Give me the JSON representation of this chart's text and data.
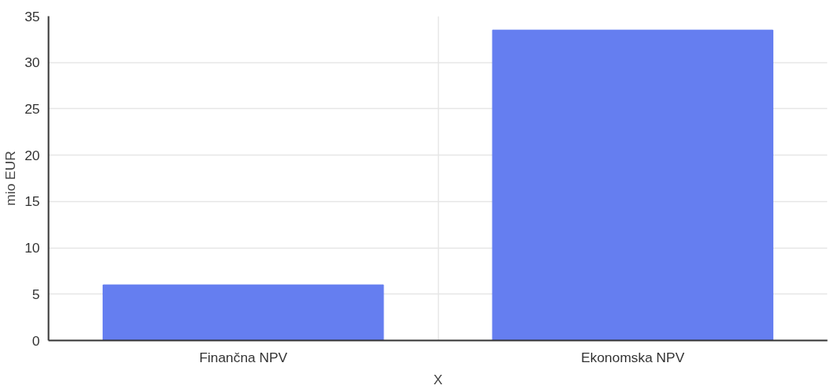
{
  "chart_data": {
    "type": "bar",
    "categories": [
      "Finančna NPV",
      "Ekonomska NPV"
    ],
    "values": [
      6.0,
      33.5
    ],
    "color": "#657ef0",
    "xlabel": "X",
    "ylabel": "mio EUR",
    "ylim": [
      0,
      35
    ],
    "yticks": [
      0,
      5,
      10,
      15,
      20,
      25,
      30,
      35
    ],
    "grid": true
  }
}
